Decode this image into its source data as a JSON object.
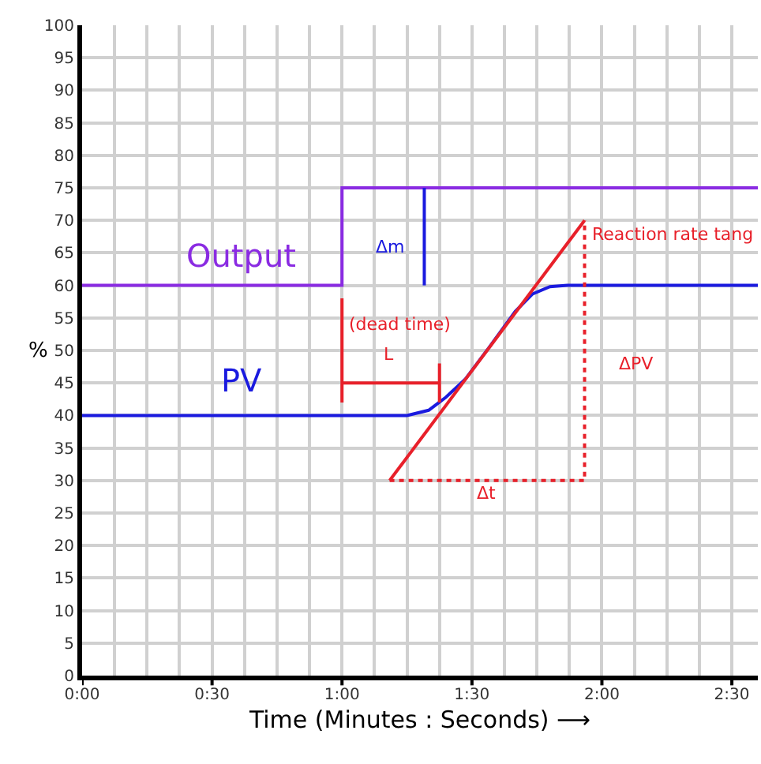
{
  "chart_data": {
    "type": "line",
    "xlabel": "Time (Minutes : Seconds) ⟶",
    "ylabel": "%",
    "xlim": [
      0,
      156
    ],
    "ylim": [
      0,
      100
    ],
    "xticks": [
      {
        "value": 0,
        "label": "0:00"
      },
      {
        "value": 7.5,
        "label": null
      },
      {
        "value": 15,
        "label": null
      },
      {
        "value": 22.5,
        "label": null
      },
      {
        "value": 30,
        "label": "0:30"
      },
      {
        "value": 37.5,
        "label": null
      },
      {
        "value": 45,
        "label": null
      },
      {
        "value": 52.5,
        "label": null
      },
      {
        "value": 60,
        "label": "1:00"
      },
      {
        "value": 67.5,
        "label": null
      },
      {
        "value": 75,
        "label": null
      },
      {
        "value": 82.5,
        "label": null
      },
      {
        "value": 90,
        "label": "1:30"
      },
      {
        "value": 97.5,
        "label": null
      },
      {
        "value": 105,
        "label": null
      },
      {
        "value": 112.5,
        "label": null
      },
      {
        "value": 120,
        "label": "2:00"
      },
      {
        "value": 127.5,
        "label": null
      },
      {
        "value": 135,
        "label": null
      },
      {
        "value": 142.5,
        "label": null
      },
      {
        "value": 150,
        "label": "2:30"
      }
    ],
    "yticks": [
      0,
      5,
      10,
      15,
      20,
      25,
      30,
      35,
      40,
      45,
      50,
      55,
      60,
      65,
      70,
      75,
      80,
      85,
      90,
      95,
      100
    ],
    "grid": true,
    "marker": "none",
    "series": [
      {
        "name": "Output",
        "color": "#8a2be2",
        "x": [
          0,
          60,
          60,
          156
        ],
        "values": [
          60,
          60,
          75,
          75
        ]
      },
      {
        "name": "PV",
        "color": "#1a1adf",
        "x": [
          0,
          75,
          80,
          84,
          88.5,
          94,
          100,
          104,
          108,
          112,
          156
        ],
        "values": [
          40,
          40,
          40.8,
          42.8,
          45.6,
          50.5,
          56,
          58.7,
          59.8,
          60,
          60
        ]
      },
      {
        "color": "#e8202a",
        "x": [
          71,
          116
        ],
        "values": [
          30,
          70
        ]
      },
      {
        "color": "#e8202a",
        "line_style": "dotted",
        "x": [
          71,
          116,
          116
        ],
        "values": [
          30,
          30,
          70
        ]
      },
      {
        "color": "#e8202a",
        "x": [
          60,
          60,
          null,
          82.5,
          82.5,
          null,
          60,
          82.5
        ],
        "values": [
          58,
          42,
          null,
          48,
          42,
          null,
          45,
          45
        ]
      },
      {
        "color": "#1a1adf",
        "x": [
          79,
          79
        ],
        "values": [
          60,
          75
        ]
      }
    ],
    "annotations": [
      "Δm",
      "(dead time)",
      "L",
      "ΔPV",
      "Δt",
      "Reaction rate tang"
    ]
  }
}
